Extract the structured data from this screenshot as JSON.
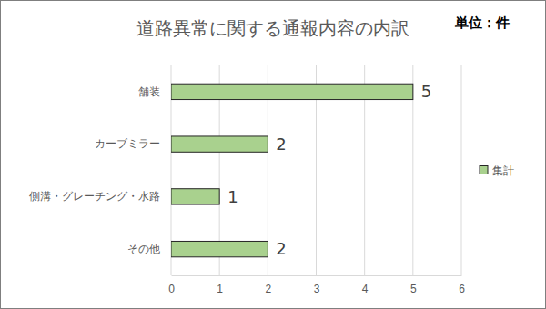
{
  "chart_data": {
    "type": "bar",
    "orientation": "horizontal",
    "title": "道路異常に関する通報内容の内訳",
    "subtitle": "単位：件",
    "categories": [
      "舗装",
      "カーブミラー",
      "側溝・グレーチング・水路",
      "その他"
    ],
    "series": [
      {
        "name": "集計",
        "color": "#a9d18e",
        "values": [
          5,
          2,
          1,
          2
        ]
      }
    ],
    "xlim": [
      0,
      6
    ],
    "xticks": [
      0,
      1,
      2,
      3,
      4,
      5,
      6
    ],
    "grid": true,
    "legend": "right",
    "data_labels": true
  }
}
